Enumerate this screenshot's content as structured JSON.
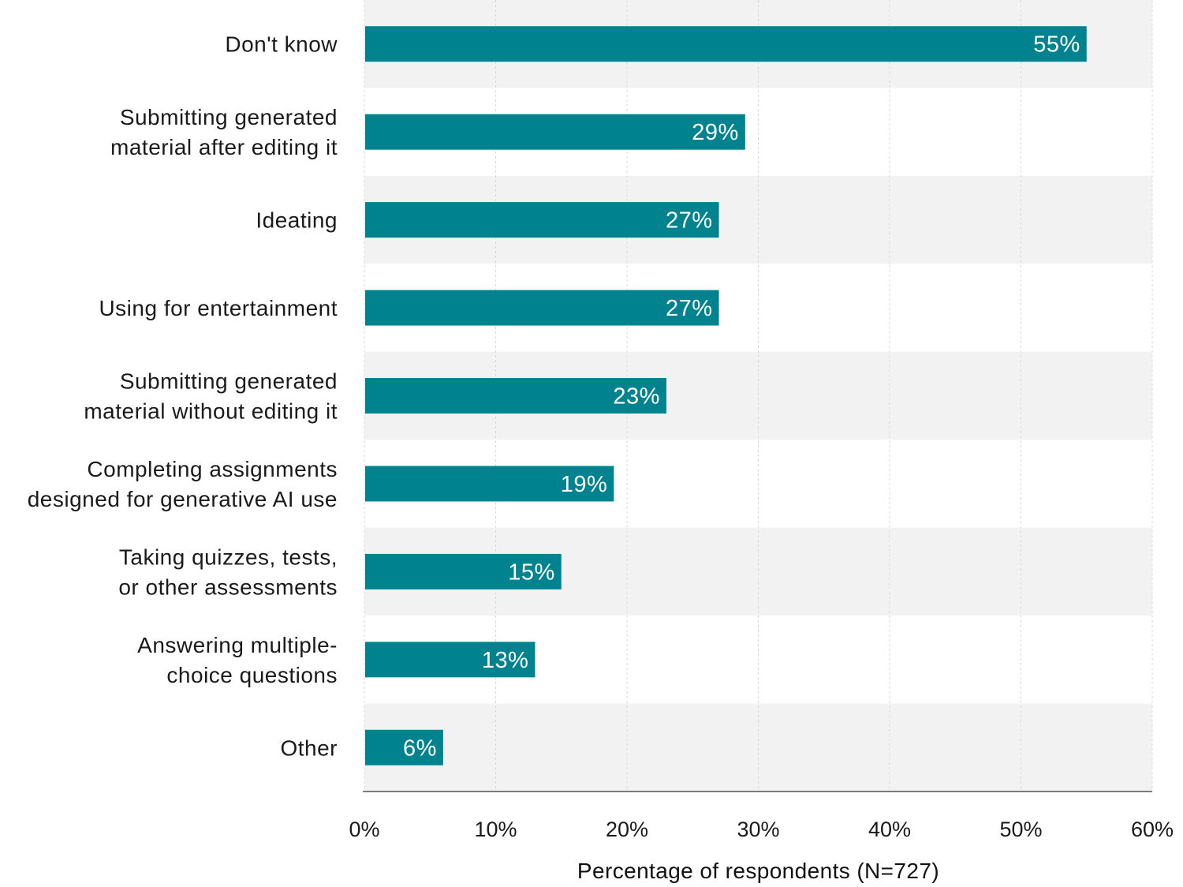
{
  "chart_data": {
    "type": "bar",
    "orientation": "horizontal",
    "categories": [
      [
        "Don't know"
      ],
      [
        "Submitting generated",
        "material after editing it"
      ],
      [
        "Ideating"
      ],
      [
        "Using for entertainment"
      ],
      [
        "Submitting generated",
        "material without editing it"
      ],
      [
        "Completing assignments",
        "designed for generative AI use"
      ],
      [
        "Taking quizzes, tests,",
        "or other assessments"
      ],
      [
        "Answering multiple-",
        "choice questions"
      ],
      [
        "Other"
      ]
    ],
    "values": [
      55,
      29,
      27,
      27,
      23,
      19,
      15,
      13,
      6
    ],
    "value_labels": [
      "55%",
      "29%",
      "27%",
      "27%",
      "23%",
      "19%",
      "15%",
      "13%",
      "6%"
    ],
    "xlabel": "Percentage of respondents (N=727)",
    "ylabel": "",
    "xlim": [
      0,
      60
    ],
    "xticks": [
      0,
      10,
      20,
      30,
      40,
      50,
      60
    ],
    "xtick_labels": [
      "0%",
      "10%",
      "20%",
      "30%",
      "40%",
      "50%",
      "60%"
    ],
    "grid": "vertical dashed",
    "row_banding": true,
    "colors": {
      "bar": "#00838f",
      "band": "#f2f2f2",
      "grid": "#d9d9d9",
      "axis": "#333333"
    }
  }
}
